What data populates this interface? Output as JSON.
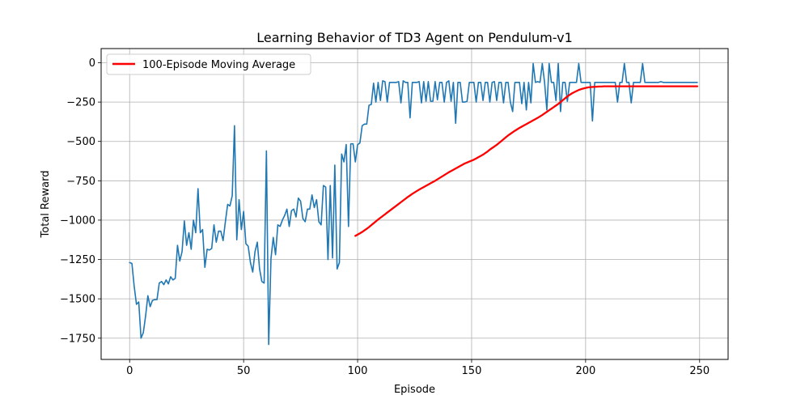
{
  "chart_data": {
    "type": "line",
    "title": "Learning Behavior of TD3 Agent on Pendulum-v1",
    "xlabel": "Episode",
    "ylabel": "Total Reward",
    "xlim": [
      -12.5,
      262.5
    ],
    "ylim": [
      -1885,
      90
    ],
    "xticks": [
      0,
      50,
      100,
      150,
      200,
      250
    ],
    "yticks": [
      0,
      -250,
      -500,
      -750,
      -1000,
      -1250,
      -1500,
      -1750
    ],
    "grid": true,
    "legend": {
      "placement": "upper-left",
      "entries": [
        "100-Episode Moving Average"
      ]
    },
    "series": [
      {
        "kind": "raw-rewards",
        "color": "#1f77b4",
        "x_start": 0,
        "x_step": 1,
        "values": [
          -1270,
          -1275,
          -1420,
          -1535,
          -1520,
          -1750,
          -1715,
          -1610,
          -1480,
          -1550,
          -1510,
          -1505,
          -1505,
          -1400,
          -1390,
          -1410,
          -1380,
          -1405,
          -1360,
          -1380,
          -1370,
          -1160,
          -1260,
          -1200,
          -1005,
          -1160,
          -1080,
          -1185,
          -1000,
          -1080,
          -800,
          -1080,
          -1060,
          -1300,
          -1185,
          -1190,
          -1180,
          -1030,
          -1140,
          -1070,
          -1070,
          -1130,
          -1010,
          -900,
          -910,
          -845,
          -400,
          -1125,
          -870,
          -1060,
          -945,
          -1150,
          -1165,
          -1270,
          -1330,
          -1200,
          -1140,
          -1310,
          -1390,
          -1400,
          -560,
          -1790,
          -1245,
          -1110,
          -1220,
          -1030,
          -1040,
          -1000,
          -970,
          -930,
          -1040,
          -940,
          -930,
          -980,
          -860,
          -880,
          -990,
          -1010,
          -930,
          -930,
          -840,
          -920,
          -870,
          -1010,
          -1030,
          -780,
          -790,
          -1250,
          -780,
          -1240,
          -650,
          -1310,
          -1270,
          -580,
          -630,
          -520,
          -1040,
          -515,
          -515,
          -630,
          -520,
          -510,
          -400,
          -390,
          -390,
          -270,
          -265,
          -130,
          -250,
          -125,
          -240,
          -115,
          -120,
          -250,
          -125,
          -125,
          -125,
          -125,
          -120,
          -255,
          -115,
          -125,
          -125,
          -350,
          -125,
          -125,
          -125,
          -120,
          -255,
          -120,
          -245,
          -120,
          -245,
          -245,
          -120,
          -235,
          -125,
          -125,
          -250,
          -125,
          -115,
          -245,
          -125,
          -385,
          -125,
          -125,
          -250,
          -250,
          -245,
          -125,
          -125,
          -125,
          -250,
          -125,
          -125,
          -240,
          -125,
          -125,
          -250,
          -125,
          -120,
          -240,
          -125,
          -125,
          -255,
          -125,
          -125,
          -250,
          -310,
          -125,
          -125,
          -125,
          -260,
          -125,
          -300,
          -125,
          -255,
          -5,
          -125,
          -120,
          -125,
          -5,
          -125,
          -300,
          -5,
          -125,
          -125,
          -240,
          -5,
          -310,
          -125,
          -125,
          -245,
          -125,
          -125,
          -125,
          -125,
          -5,
          -125,
          -125,
          -125,
          -125,
          -125,
          -370,
          -125,
          -125,
          -125,
          -125,
          -125,
          -125,
          -125,
          -125,
          -125,
          -125,
          -250,
          -125,
          -125,
          -5,
          -125,
          -125,
          -255,
          -125,
          -125,
          -125,
          -125,
          -5,
          -125,
          -125,
          -125,
          -125,
          -125,
          -125,
          -125,
          -120,
          -125,
          -125,
          -125,
          -125,
          -125,
          -125,
          -125,
          -125,
          -125,
          -125,
          -125,
          -125,
          -125,
          -125,
          -125,
          -125
        ]
      },
      {
        "name": "100-Episode Moving Average",
        "color": "#ff0000",
        "x_start": 99,
        "x_step": 1,
        "values": [
          -1100,
          -1092,
          -1084,
          -1075,
          -1065,
          -1055,
          -1044,
          -1032,
          -1020,
          -1008,
          -996,
          -985,
          -974,
          -963,
          -952,
          -941,
          -930,
          -919,
          -908,
          -897,
          -886,
          -875,
          -864,
          -853,
          -843,
          -833,
          -824,
          -815,
          -806,
          -798,
          -790,
          -782,
          -774,
          -766,
          -758,
          -750,
          -741,
          -732,
          -723,
          -714,
          -705,
          -696,
          -688,
          -680,
          -672,
          -664,
          -656,
          -648,
          -640,
          -634,
          -628,
          -622,
          -616,
          -608,
          -600,
          -592,
          -584,
          -574,
          -564,
          -552,
          -542,
          -532,
          -522,
          -510,
          -498,
          -486,
          -474,
          -462,
          -452,
          -442,
          -432,
          -423,
          -414,
          -406,
          -398,
          -390,
          -382,
          -374,
          -366,
          -358,
          -350,
          -341,
          -332,
          -322,
          -312,
          -302,
          -292,
          -282,
          -272,
          -262,
          -250,
          -238,
          -226,
          -214,
          -204,
          -195,
          -187,
          -180,
          -173,
          -168,
          -164,
          -160,
          -157,
          -155,
          -154,
          -153,
          -152,
          -151,
          -151,
          -150,
          -150,
          -150,
          -150,
          -150,
          -150,
          -150,
          -150,
          -150,
          -150,
          -150,
          -150,
          -150,
          -150,
          -150,
          -150,
          -150,
          -150,
          -150,
          -150,
          -150,
          -150,
          -150,
          -150,
          -150,
          -150,
          -150,
          -150,
          -150,
          -150,
          -150,
          -150,
          -150,
          -150,
          -150,
          -150,
          -150,
          -150,
          -150,
          -150,
          -150,
          -150
        ]
      }
    ]
  }
}
